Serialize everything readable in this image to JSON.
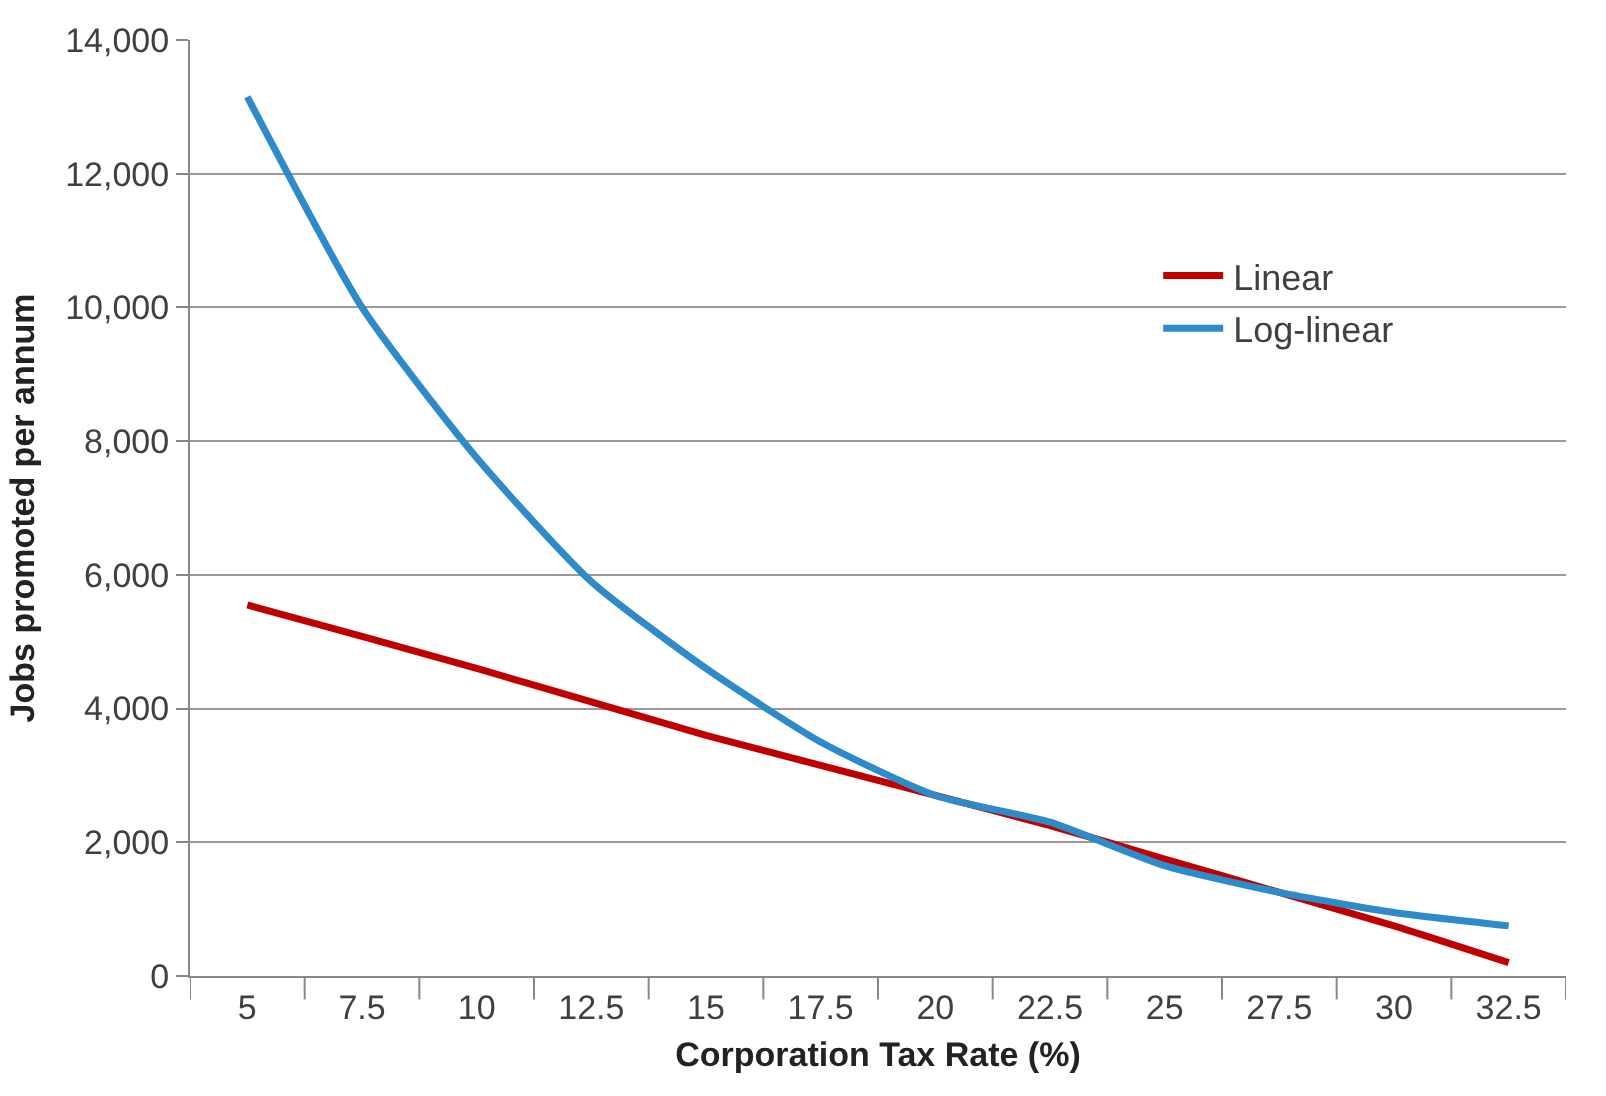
{
  "chart_data": {
    "type": "line",
    "xlabel": "Corporation Tax Rate (%)",
    "ylabel": "Jobs promoted per annum",
    "categories": [
      "5",
      "7.5",
      "10",
      "12.5",
      "15",
      "17.5",
      "20",
      "22.5",
      "25",
      "27.5",
      "30",
      "32.5"
    ],
    "series": [
      {
        "name": "Linear",
        "color": "#c00000",
        "values": [
          5550,
          5080,
          4600,
          4100,
          3600,
          3150,
          2700,
          2250,
          1750,
          1250,
          750,
          200
        ]
      },
      {
        "name": "Log-linear",
        "color": "#2e8bc9",
        "values": [
          13150,
          10000,
          7750,
          5900,
          4600,
          3500,
          2700,
          2300,
          1650,
          1250,
          950,
          750
        ]
      }
    ],
    "ylim": [
      0,
      14000
    ],
    "yticks": [
      {
        "value": 0,
        "label": "0"
      },
      {
        "value": 2000,
        "label": "2,000"
      },
      {
        "value": 4000,
        "label": "4,000"
      },
      {
        "value": 6000,
        "label": "6,000"
      },
      {
        "value": 8000,
        "label": "8,000"
      },
      {
        "value": 10000,
        "label": "10,000"
      },
      {
        "value": 12000,
        "label": "12,000"
      },
      {
        "value": 14000,
        "label": "14,000"
      }
    ],
    "grid": "y",
    "legend": "right",
    "marker": "none",
    "line_style": "solid"
  }
}
